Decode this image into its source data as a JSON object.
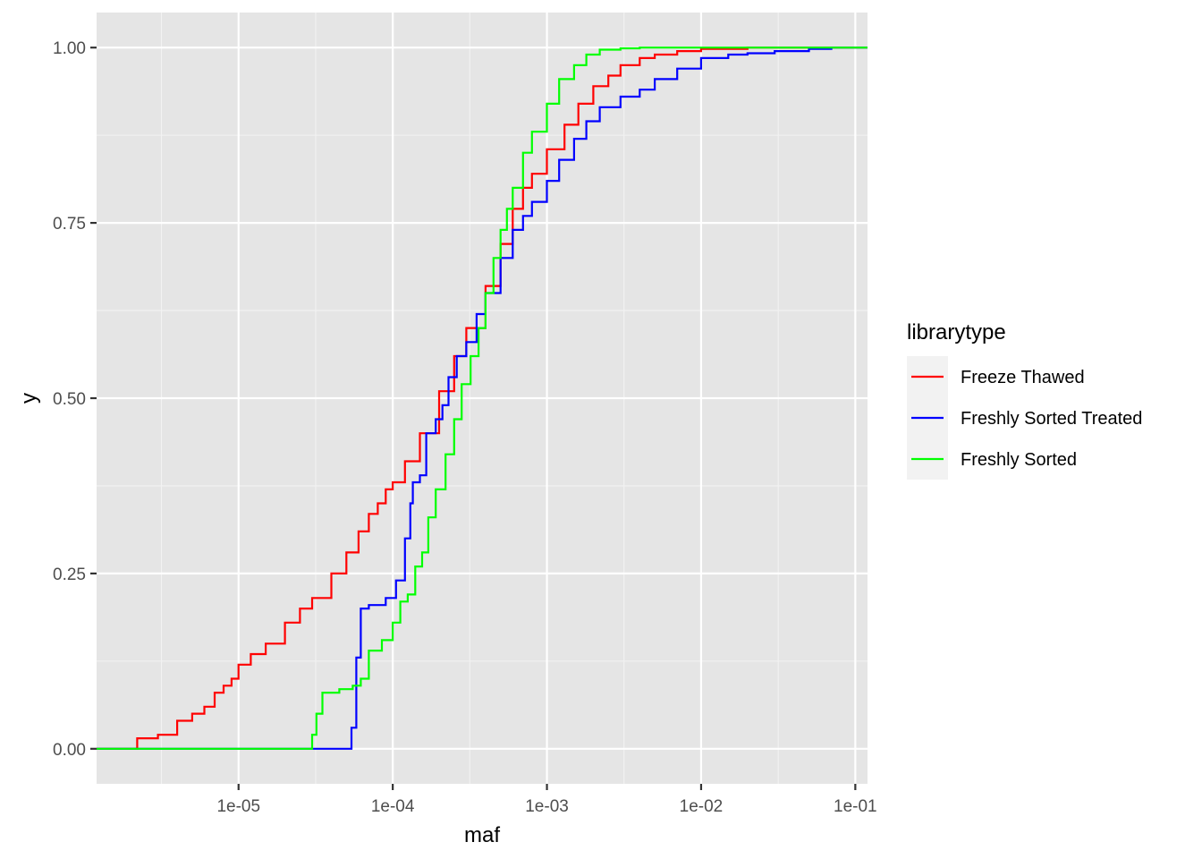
{
  "chart_data": {
    "type": "line",
    "step": true,
    "xlabel": "maf",
    "ylabel": "y",
    "x_scale": "log10",
    "xlim": [
      1.2e-06,
      0.12
    ],
    "ylim": [
      -0.05,
      1.05
    ],
    "x_ticks": [
      1e-05,
      0.0001,
      0.001,
      0.01,
      0.1
    ],
    "x_tick_labels": [
      "1e-05",
      "1e-04",
      "1e-03",
      "1e-02",
      "1e-01"
    ],
    "y_ticks": [
      0,
      0.25,
      0.5,
      0.75,
      1
    ],
    "y_tick_labels": [
      "0.00",
      "0.25",
      "0.50",
      "0.75",
      "1.00"
    ],
    "grid": true,
    "panel_background": "#e5e5e5",
    "legend": {
      "title": "librarytype",
      "position": "right",
      "entries": [
        "Freeze Thawed",
        "Freshly Sorted Treated",
        "Freshly Sorted"
      ]
    },
    "series": [
      {
        "name": "Freeze Thawed",
        "color": "#ff0000",
        "x": [
          1.2e-06,
          2.1e-06,
          2.2e-06,
          3e-06,
          4e-06,
          5e-06,
          6e-06,
          7e-06,
          8e-06,
          9e-06,
          1e-05,
          1.2e-05,
          1.5e-05,
          2e-05,
          2.5e-05,
          3e-05,
          4e-05,
          5e-05,
          6e-05,
          7e-05,
          8e-05,
          9e-05,
          0.0001,
          0.00012,
          0.00015,
          0.0002,
          0.00025,
          0.0003,
          0.0004,
          0.0005,
          0.0006,
          0.0007,
          0.0008,
          0.001,
          0.0013,
          0.0016,
          0.002,
          0.0025,
          0.003,
          0.004,
          0.005,
          0.007,
          0.01,
          0.02,
          0.05,
          0.12
        ],
        "y": [
          0,
          0,
          0.015,
          0.02,
          0.04,
          0.05,
          0.06,
          0.08,
          0.09,
          0.1,
          0.12,
          0.135,
          0.15,
          0.18,
          0.2,
          0.215,
          0.25,
          0.28,
          0.31,
          0.335,
          0.35,
          0.37,
          0.38,
          0.41,
          0.45,
          0.51,
          0.56,
          0.6,
          0.66,
          0.72,
          0.77,
          0.8,
          0.82,
          0.855,
          0.89,
          0.92,
          0.945,
          0.96,
          0.975,
          0.985,
          0.99,
          0.995,
          0.998,
          1,
          1,
          1
        ]
      },
      {
        "name": "Freshly Sorted Treated",
        "color": "#0000ff",
        "x": [
          1.2e-06,
          5.2e-05,
          5.4e-05,
          5.8e-05,
          6.2e-05,
          7e-05,
          9e-05,
          0.000105,
          0.00012,
          0.00013,
          0.000135,
          0.00015,
          0.000165,
          0.00019,
          0.00021,
          0.00023,
          0.00026,
          0.0003,
          0.00035,
          0.0004,
          0.0005,
          0.0006,
          0.0007,
          0.0008,
          0.001,
          0.0012,
          0.0015,
          0.0018,
          0.0022,
          0.003,
          0.004,
          0.005,
          0.007,
          0.01,
          0.015,
          0.02,
          0.03,
          0.05,
          0.07,
          0.12
        ],
        "y": [
          0,
          0,
          0.03,
          0.13,
          0.2,
          0.205,
          0.215,
          0.24,
          0.3,
          0.35,
          0.38,
          0.39,
          0.45,
          0.47,
          0.49,
          0.53,
          0.56,
          0.58,
          0.62,
          0.65,
          0.7,
          0.74,
          0.76,
          0.78,
          0.81,
          0.84,
          0.87,
          0.895,
          0.915,
          0.93,
          0.94,
          0.955,
          0.97,
          0.985,
          0.99,
          0.992,
          0.995,
          0.998,
          1,
          1
        ]
      },
      {
        "name": "Freshly Sorted",
        "color": "#00ff00",
        "x": [
          1.2e-06,
          2.7e-05,
          3e-05,
          3.2e-05,
          3.5e-05,
          4.5e-05,
          5.5e-05,
          6.2e-05,
          7e-05,
          8.5e-05,
          0.0001,
          0.000112,
          0.000125,
          0.00014,
          0.000155,
          0.00017,
          0.00019,
          0.00022,
          0.00025,
          0.00028,
          0.00032,
          0.00036,
          0.0004,
          0.00045,
          0.0005,
          0.00055,
          0.0006,
          0.0007,
          0.0008,
          0.001,
          0.0012,
          0.0015,
          0.0018,
          0.0022,
          0.003,
          0.004,
          0.01,
          0.12
        ],
        "y": [
          0,
          0,
          0.02,
          0.05,
          0.08,
          0.085,
          0.09,
          0.1,
          0.14,
          0.155,
          0.18,
          0.21,
          0.22,
          0.26,
          0.28,
          0.33,
          0.37,
          0.42,
          0.47,
          0.52,
          0.56,
          0.6,
          0.65,
          0.7,
          0.74,
          0.77,
          0.8,
          0.85,
          0.88,
          0.92,
          0.955,
          0.975,
          0.99,
          0.997,
          0.999,
          1,
          1,
          1
        ]
      }
    ]
  }
}
